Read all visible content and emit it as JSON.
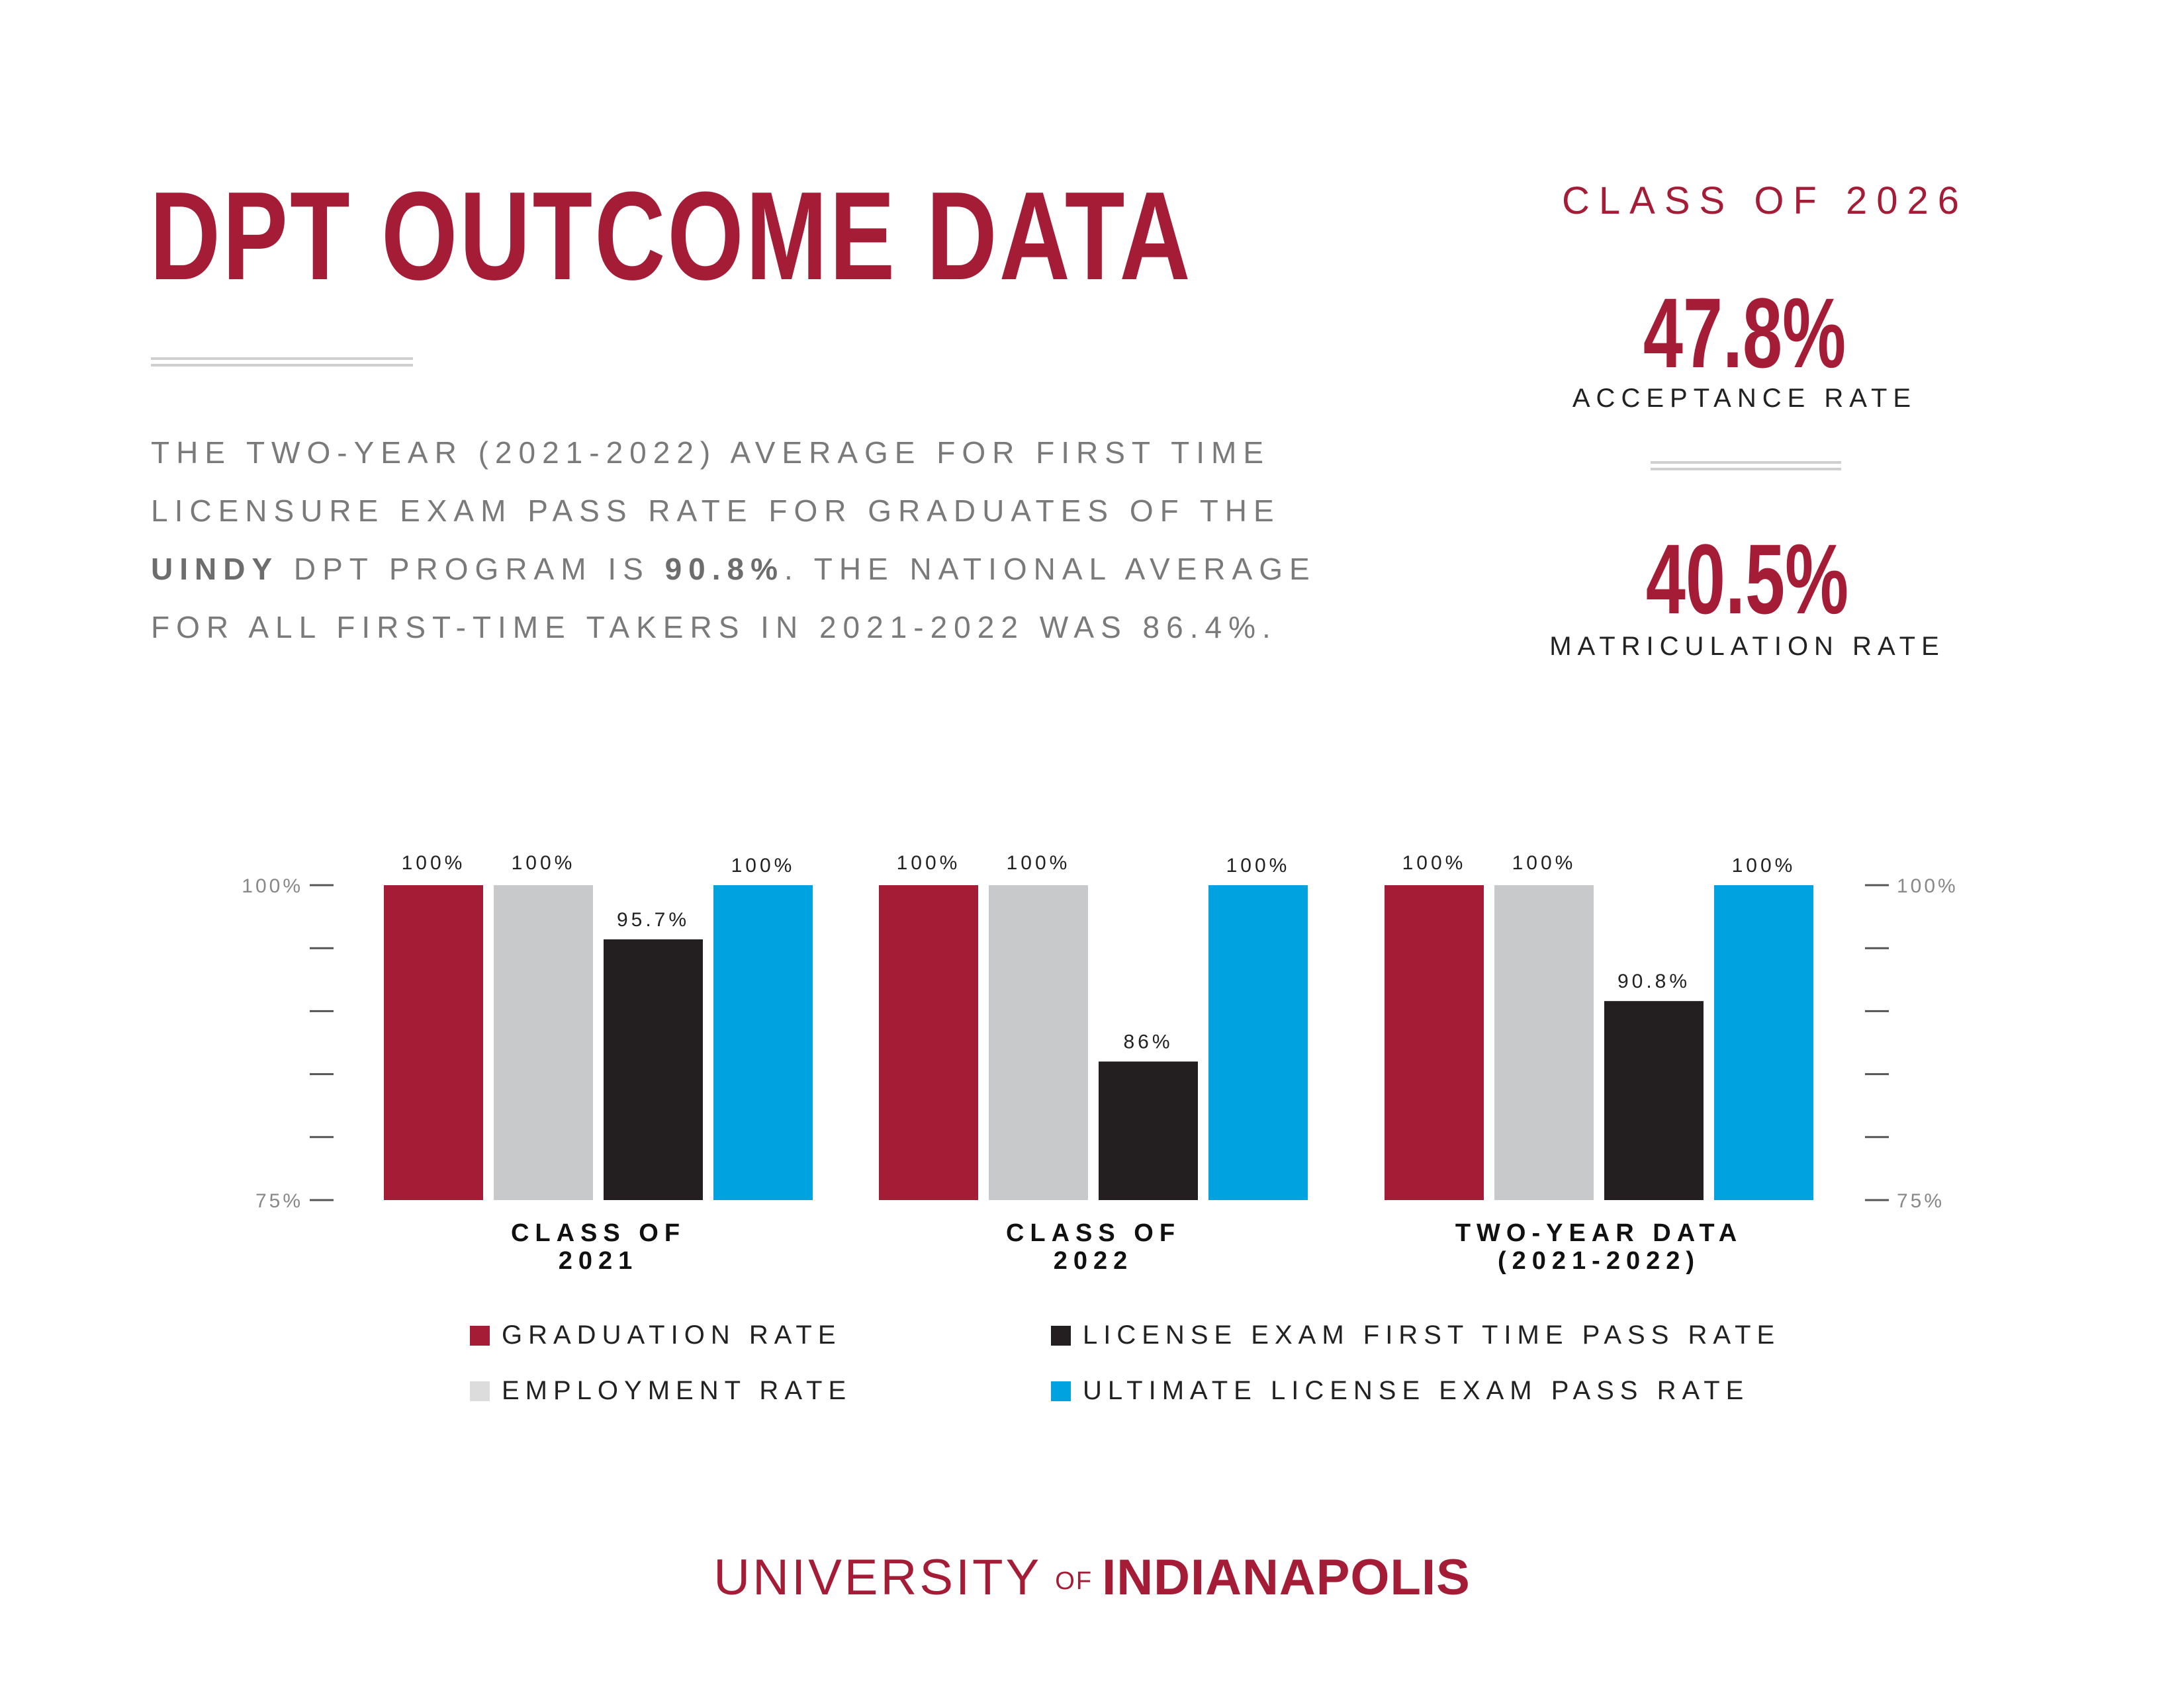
{
  "header": {
    "title": "DPT OUTCOME DATA"
  },
  "intro": {
    "text_part1": "THE TWO-YEAR (2021-2022) AVERAGE FOR FIRST TIME LICENSURE EXAM PASS RATE FOR GRADUATES OF THE ",
    "uindy": "UINDY",
    "text_part2": " DPT PROGRAM IS ",
    "average": "90.8%",
    "text_part3": ". THE NATIONAL AVERAGE FOR ALL FIRST-TIME TAKERS IN 2021-2022 WAS 86.4%."
  },
  "class_stats": {
    "label": "CLASS OF 2026",
    "acceptance_value": "47.8%",
    "acceptance_label": "ACCEPTANCE RATE",
    "matriculation_value": "40.5%",
    "matriculation_label": "MATRICULATION RATE"
  },
  "chart_data": {
    "type": "bar",
    "title": "",
    "xlabel": "",
    "ylabel": "",
    "ylim": [
      75,
      100
    ],
    "y_tick_labels": [
      "100%",
      "75%"
    ],
    "categories": [
      "CLASS OF 2021",
      "CLASS OF 2022",
      "TWO-YEAR DATA (2021-2022)"
    ],
    "category_lines": [
      [
        "CLASS OF",
        "2021"
      ],
      [
        "CLASS OF",
        "2022"
      ],
      [
        "TWO-YEAR DATA",
        "(2021-2022)"
      ]
    ],
    "series": [
      {
        "name": "GRADUATION RATE",
        "color": "#a51c36",
        "values": [
          100,
          100,
          100
        ],
        "labels": [
          "100%",
          "100%",
          "100%"
        ]
      },
      {
        "name": "EMPLOYMENT RATE",
        "color": "#c8c9cb",
        "values": [
          100,
          100,
          100
        ],
        "labels": [
          "100%",
          "100%",
          "100%"
        ]
      },
      {
        "name": "LICENSE EXAM FIRST TIME PASS RATE",
        "color": "#231f20",
        "values": [
          95.7,
          86,
          90.8
        ],
        "labels": [
          "95.7%",
          "86%",
          "90.8%"
        ]
      },
      {
        "name": "ULTIMATE LICENSE EXAM PASS RATE",
        "color": "#00a3e0",
        "values": [
          100,
          100,
          100
        ],
        "labels": [
          "100%",
          "100%",
          "100%"
        ]
      }
    ],
    "legend_position": "bottom",
    "grid": false
  },
  "footer": {
    "university": "UNIVERSITY",
    "of": "OF",
    "indianapolis": "INDIANAPOLIS"
  }
}
